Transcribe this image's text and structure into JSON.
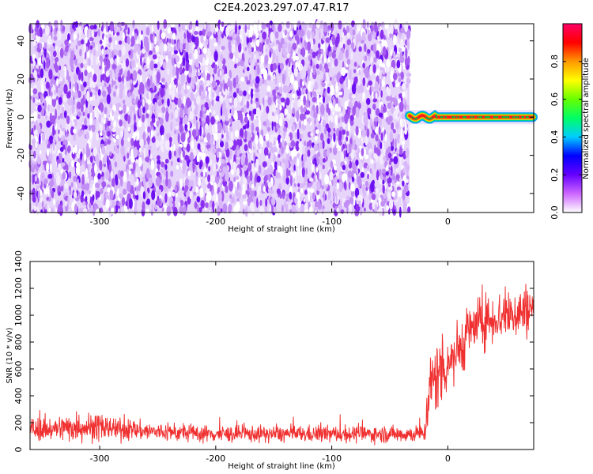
{
  "title": "C2E4.2023.297.07.47.R17",
  "chart_data": [
    {
      "type": "heatmap",
      "xlabel": "Height of straight line (km)",
      "ylabel": "Frequency (Hz)",
      "xlim": [
        -360,
        74
      ],
      "ylim": [
        -50,
        49
      ],
      "xticks": [
        -300,
        -200,
        -100,
        0
      ],
      "yticks": [
        -40,
        -20,
        0,
        20,
        40
      ],
      "colorbar": {
        "label": "Normalized spectral amplitude",
        "range": [
          0,
          1
        ],
        "ticks": [
          0.0,
          0.2,
          0.4,
          0.6,
          0.8
        ],
        "colors": [
          "#ffffff",
          "#cc66ff",
          "#6600ff",
          "#0000ff",
          "#00ccff",
          "#00ff66",
          "#66ff00",
          "#ffff00",
          "#ff9900",
          "#ff0000",
          "#ff0066"
        ]
      },
      "regions": [
        {
          "x_range": [
            -360,
            -33
          ],
          "y_range": [
            -50,
            49
          ],
          "amplitude_range": [
            0.0,
            0.25
          ],
          "pattern": "noise"
        },
        {
          "x_range": [
            -33,
            74
          ],
          "y_range": [
            -1.5,
            1.5
          ],
          "amplitude_range": [
            0.6,
            1.0
          ],
          "pattern": "carrier line near 0 Hz"
        }
      ]
    },
    {
      "type": "line",
      "xlabel": "Height of straight line (km)",
      "ylabel": "SNR (10 * v/v)",
      "xlim": [
        -360,
        74
      ],
      "ylim": [
        0,
        1400
      ],
      "xticks": [
        -300,
        -200,
        -100,
        0
      ],
      "yticks": [
        0,
        200,
        400,
        600,
        800,
        1000,
        1200,
        1400
      ],
      "color": "#f03030",
      "envelope": {
        "x": [
          -360,
          -340,
          -320,
          -300,
          -280,
          -250,
          -200,
          -150,
          -100,
          -50,
          -30,
          -20,
          -18,
          -15,
          -10,
          0,
          10,
          20,
          30,
          40,
          50,
          60,
          74
        ],
        "mean": [
          150,
          155,
          170,
          165,
          150,
          130,
          115,
          115,
          115,
          115,
          115,
          120,
          300,
          450,
          550,
          650,
          750,
          900,
          950,
          980,
          1000,
          1020,
          1050
        ],
        "spread": [
          70,
          80,
          100,
          90,
          70,
          60,
          55,
          55,
          55,
          55,
          55,
          60,
          200,
          250,
          250,
          220,
          200,
          180,
          170,
          170,
          170,
          180,
          180
        ]
      }
    }
  ]
}
